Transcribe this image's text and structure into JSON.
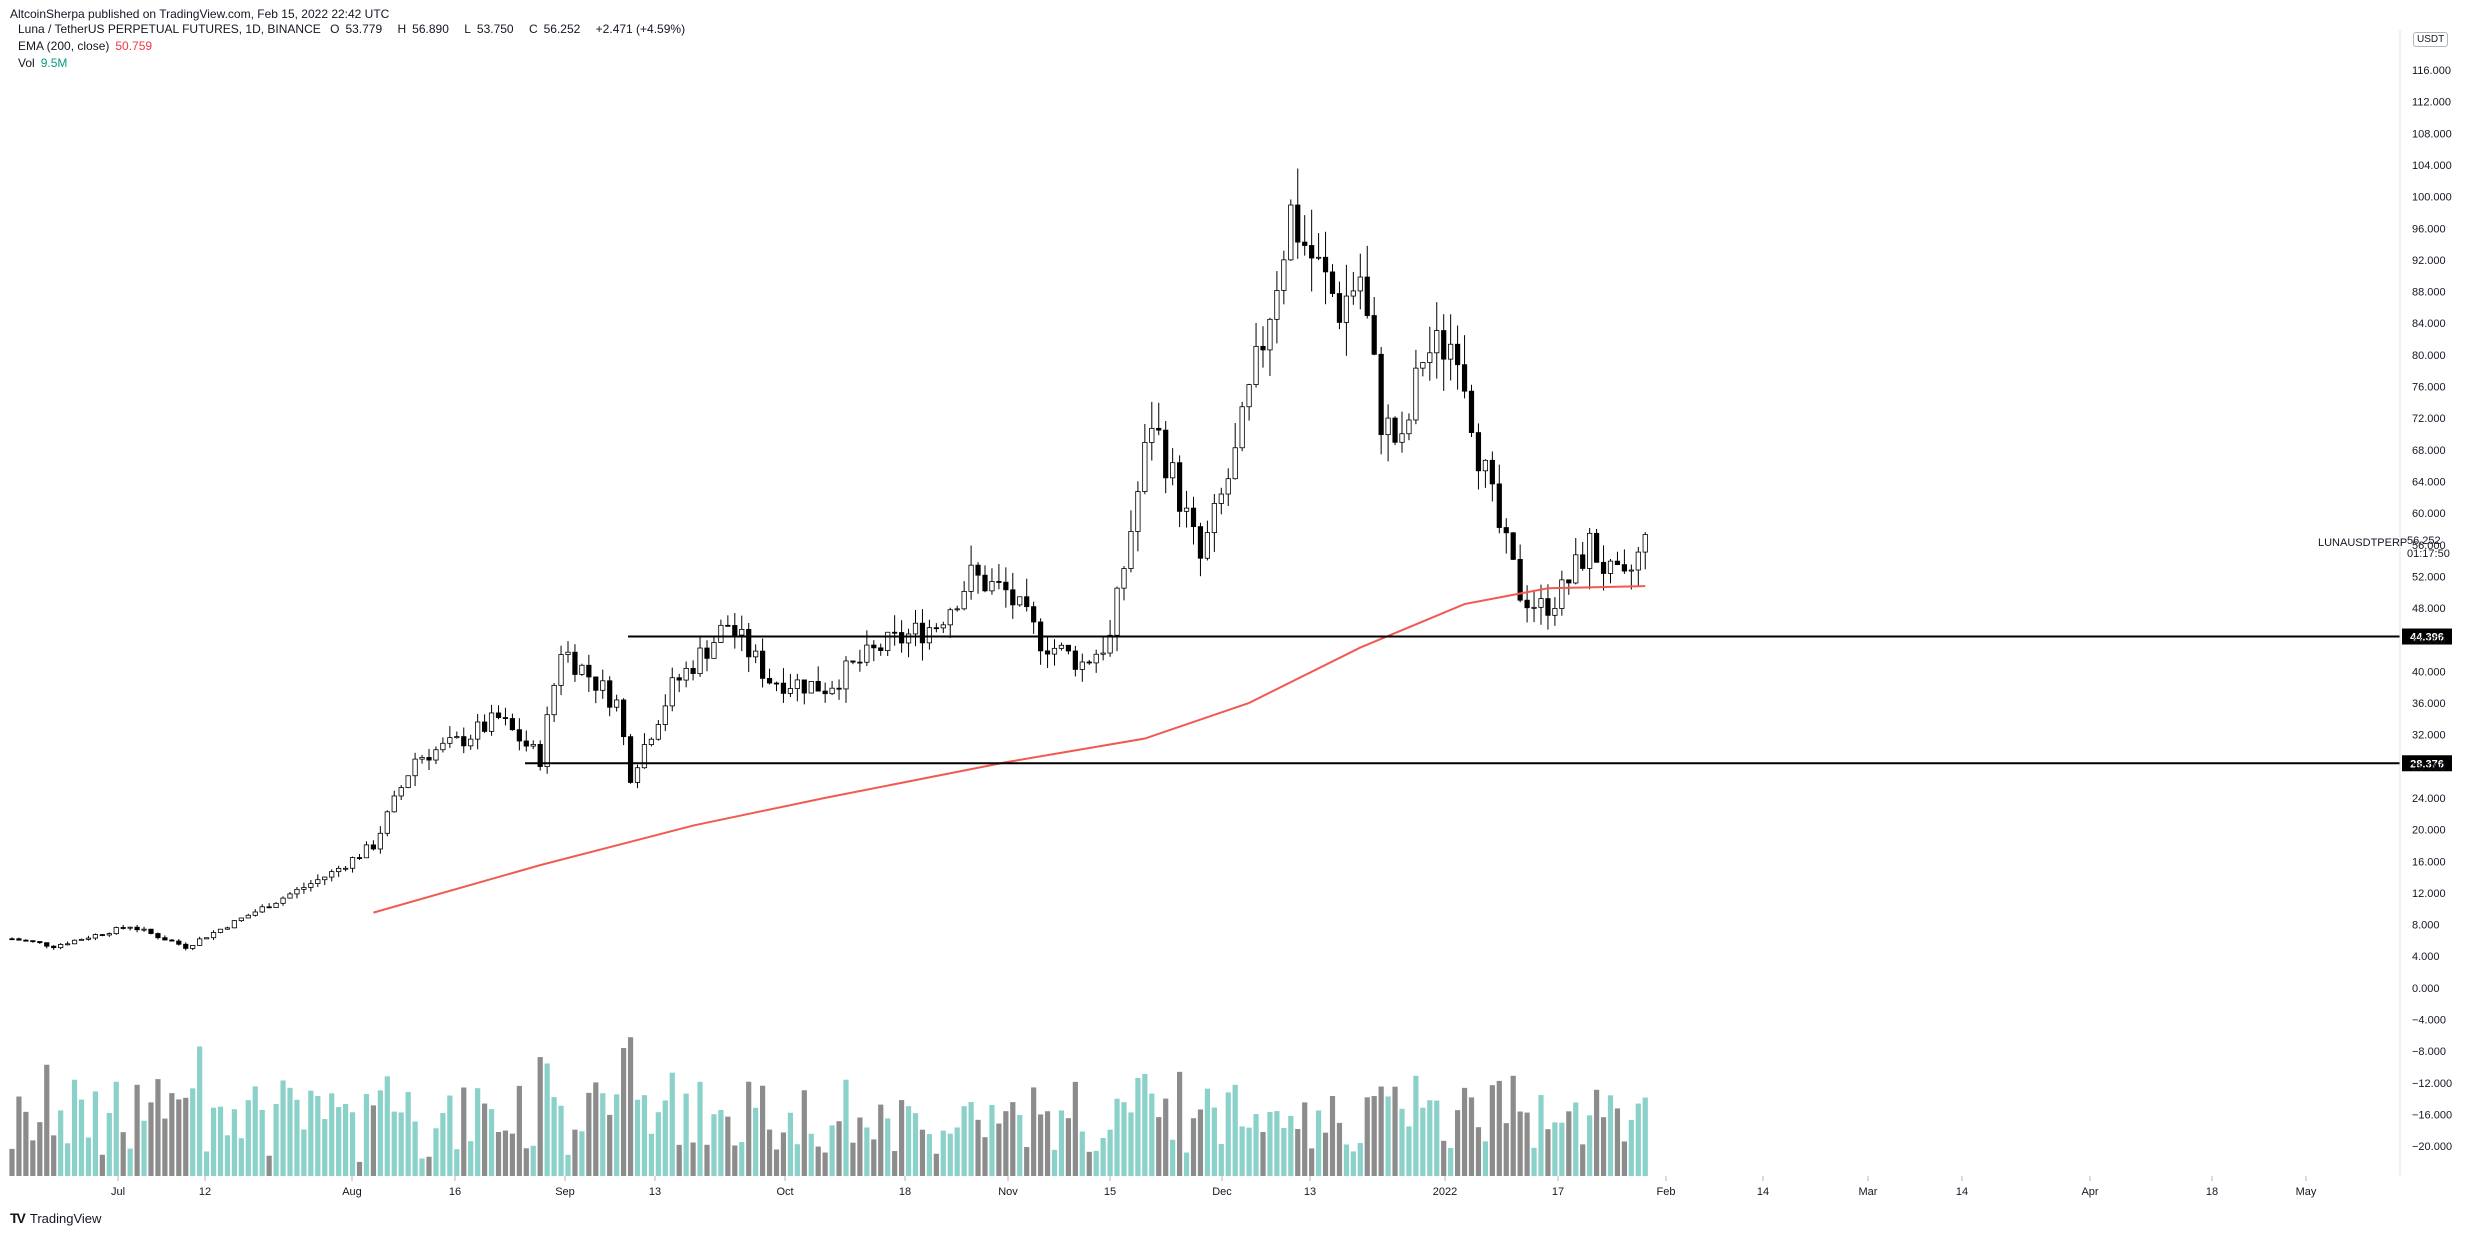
{
  "publisher": "AltcoinSherpa published on TradingView.com, Feb 15, 2022 22:42 UTC",
  "legend": {
    "symbol": "Luna / TetherUS PERPETUAL FUTURES, 1D, BINANCE",
    "open_label": "O",
    "open": "53.779",
    "high_label": "H",
    "high": "56.890",
    "low_label": "L",
    "low": "53.750",
    "close_label": "C",
    "close": "56.252",
    "change": "+2.471 (+4.59%)",
    "ema_label": "EMA (200, close)",
    "ema_value": "50.759",
    "vol_label": "Vol",
    "vol_value": "9.5M"
  },
  "currency": "USDT",
  "symbol_tag": "LUNAUSDTPERP",
  "last_price": "56.252",
  "countdown": "01:17:50",
  "footer": "TradingView",
  "colors": {
    "up": "#089981",
    "down": "#f23645",
    "ema": "#f05a50",
    "vol_up": "#8ad1c9",
    "vol_down": "#8c8c8c",
    "line": "#000000"
  },
  "price_axis": [
    "116.000",
    "112.000",
    "108.000",
    "104.000",
    "100.000",
    "96.000",
    "92.000",
    "88.000",
    "84.000",
    "80.000",
    "76.000",
    "72.000",
    "68.000",
    "64.000",
    "60.000",
    "56.000",
    "52.000",
    "48.000",
    "44.000",
    "40.000",
    "36.000",
    "32.000",
    "28.000",
    "24.000",
    "20.000",
    "16.000",
    "12.000",
    "8.000",
    "4.000",
    "0.000",
    "−4.000",
    "−8.000",
    "−12.000",
    "−16.000",
    "−20.000"
  ],
  "time_axis": [
    "Jul",
    "12",
    "Aug",
    "16",
    "Sep",
    "13",
    "Oct",
    "18",
    "Nov",
    "15",
    "Dec",
    "13",
    "2022",
    "17",
    "Feb",
    "14",
    "Mar",
    "14",
    "Apr",
    "18",
    "May"
  ],
  "horizontal_levels": [
    {
      "label": "44.396",
      "value": 44.396
    },
    {
      "label": "28.376",
      "value": 28.376
    }
  ],
  "chart_data": {
    "type": "candlestick",
    "instrument": "LUNAUSDTPERP",
    "interval": "1D",
    "price_range": [
      -22,
      118
    ],
    "candles_close_path": [
      {
        "x": "Jun 25",
        "close": 6.2
      },
      {
        "x": "Jul 1",
        "close": 5.3
      },
      {
        "x": "Jul 12",
        "close": 7.8
      },
      {
        "x": "Jul 20",
        "close": 5.2
      },
      {
        "x": "Aug 1",
        "close": 10.5
      },
      {
        "x": "Aug 10",
        "close": 14.5
      },
      {
        "x": "Aug 16",
        "close": 18
      },
      {
        "x": "Aug 22",
        "close": 29
      },
      {
        "x": "Aug 28",
        "close": 31
      },
      {
        "x": "Sep 3",
        "close": 34
      },
      {
        "x": "Sep 9",
        "close": 29
      },
      {
        "x": "Sep 12",
        "close": 43
      },
      {
        "x": "Sep 20",
        "close": 36
      },
      {
        "x": "Sep 22",
        "close": 27
      },
      {
        "x": "Sep 28",
        "close": 38
      },
      {
        "x": "Oct 6",
        "close": 46
      },
      {
        "x": "Oct 12",
        "close": 39
      },
      {
        "x": "Oct 20",
        "close": 38
      },
      {
        "x": "Oct 28",
        "close": 43
      },
      {
        "x": "Nov 5",
        "close": 46
      },
      {
        "x": "Nov 10",
        "close": 52
      },
      {
        "x": "Nov 15",
        "close": 50
      },
      {
        "x": "Nov 20",
        "close": 44
      },
      {
        "x": "Nov 26",
        "close": 41
      },
      {
        "x": "Nov 30",
        "close": 44
      },
      {
        "x": "Dec 3",
        "close": 58
      },
      {
        "x": "Dec 6",
        "close": 72
      },
      {
        "x": "Dec 10",
        "close": 62
      },
      {
        "x": "Dec 13",
        "close": 54
      },
      {
        "x": "Dec 18",
        "close": 67
      },
      {
        "x": "Dec 22",
        "close": 82
      },
      {
        "x": "Dec 26",
        "close": 98
      },
      {
        "x": "Dec 28",
        "close": 94
      },
      {
        "x": "Jan 2",
        "close": 86
      },
      {
        "x": "Jan 5",
        "close": 90
      },
      {
        "x": "Jan 8",
        "close": 72
      },
      {
        "x": "Jan 11",
        "close": 68
      },
      {
        "x": "Jan 14",
        "close": 80
      },
      {
        "x": "Jan 19",
        "close": 82
      },
      {
        "x": "Jan 22",
        "close": 68
      },
      {
        "x": "Jan 25",
        "close": 58
      },
      {
        "x": "Jan 28",
        "close": 50
      },
      {
        "x": "Jan 31",
        "close": 48
      },
      {
        "x": "Feb 3",
        "close": 50
      },
      {
        "x": "Feb 7",
        "close": 56
      },
      {
        "x": "Feb 10",
        "close": 52
      },
      {
        "x": "Feb 12",
        "close": 51
      },
      {
        "x": "Feb 15",
        "close": 56.252
      }
    ],
    "ema200": [
      {
        "x": "Aug 16",
        "y": 9.5
      },
      {
        "x": "Sep 9",
        "y": 15.5
      },
      {
        "x": "Oct 1",
        "y": 20.5
      },
      {
        "x": "Oct 20",
        "y": 24
      },
      {
        "x": "Nov 15",
        "y": 28.5
      },
      {
        "x": "Dec 5",
        "y": 31.5
      },
      {
        "x": "Dec 20",
        "y": 36
      },
      {
        "x": "Jan 5",
        "y": 43
      },
      {
        "x": "Jan 20",
        "y": 48.5
      },
      {
        "x": "Feb 1",
        "y": 50.5
      },
      {
        "x": "Feb 15",
        "y": 50.759
      }
    ],
    "volume_series_note": "Volume histogram below price; green = up day, grey = down day"
  }
}
